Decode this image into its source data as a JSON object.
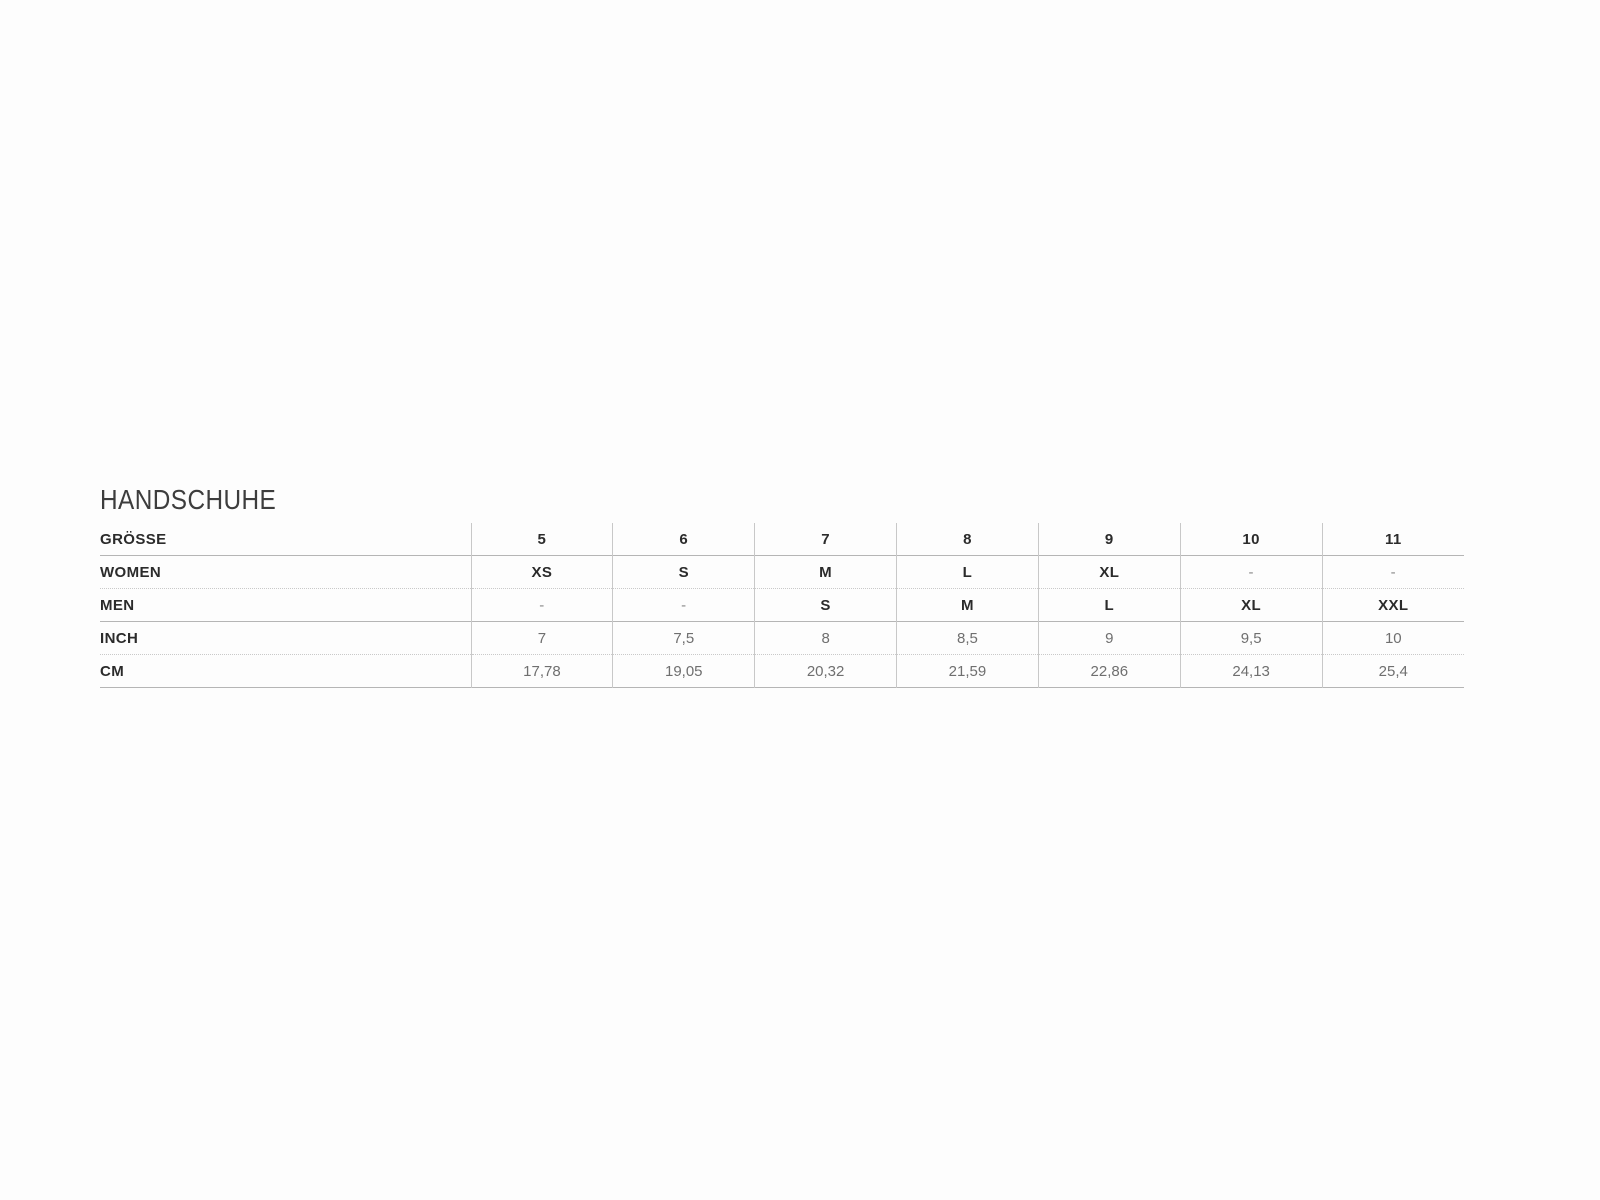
{
  "size_chart": {
    "title": "HANDSCHUHE",
    "rows": [
      {
        "label": "GRÖSSE",
        "values": [
          "5",
          "6",
          "7",
          "8",
          "9",
          "10",
          "11"
        ]
      },
      {
        "label": "WOMEN",
        "values": [
          "XS",
          "S",
          "M",
          "L",
          "XL",
          "-",
          "-"
        ]
      },
      {
        "label": "MEN",
        "values": [
          "-",
          "-",
          "S",
          "M",
          "L",
          "XL",
          "XXL"
        ]
      },
      {
        "label": "INCH",
        "values": [
          "7",
          "7,5",
          "8",
          "8,5",
          "9",
          "9,5",
          "10"
        ]
      },
      {
        "label": "CM",
        "values": [
          "17,78",
          "19,05",
          "20,32",
          "21,59",
          "22,86",
          "24,13",
          "25,4"
        ]
      }
    ],
    "colors": {
      "title_text": "#3d3d3d",
      "strong_text": "#2b2b2b",
      "muted_text": "#6f6f6f",
      "dash_text": "#8a8a8a",
      "solid_line": "#b5b5b5",
      "dotted_line": "#c9c9c9",
      "vertical_line": "#c8c8c8",
      "background": "#fdfdfd"
    }
  }
}
